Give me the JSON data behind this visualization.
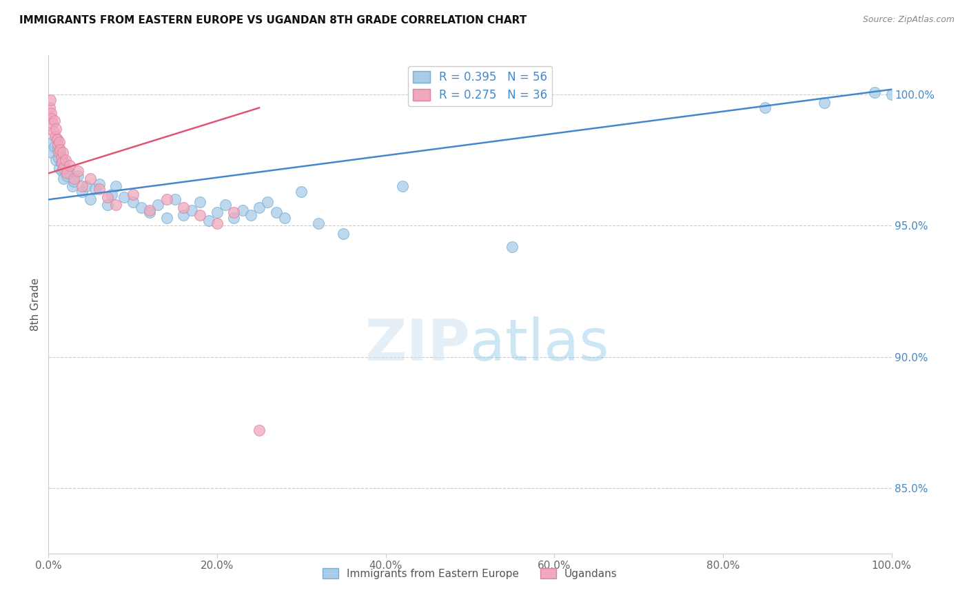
{
  "title": "IMMIGRANTS FROM EASTERN EUROPE VS UGANDAN 8TH GRADE CORRELATION CHART",
  "source": "Source: ZipAtlas.com",
  "ylabel": "8th Grade",
  "watermark_zip": "ZIP",
  "watermark_atlas": "atlas",
  "xlim": [
    0.0,
    100.0
  ],
  "ylim": [
    82.5,
    101.5
  ],
  "yticks": [
    85.0,
    90.0,
    95.0,
    100.0
  ],
  "xticks": [
    0.0,
    20.0,
    40.0,
    60.0,
    80.0,
    100.0
  ],
  "blue_R": 0.395,
  "blue_N": 56,
  "pink_R": 0.275,
  "pink_N": 36,
  "blue_color": "#a8cce8",
  "pink_color": "#f0a8bc",
  "blue_edge_color": "#7aaed0",
  "pink_edge_color": "#e080a0",
  "blue_line_color": "#4488cc",
  "pink_line_color": "#e05575",
  "legend_color": "#4488cc",
  "right_tick_color": "#4488cc",
  "grid_color": "#cccccc",
  "background_color": "#ffffff",
  "blue_x": [
    0.3,
    0.5,
    0.7,
    0.9,
    1.0,
    1.1,
    1.2,
    1.3,
    1.4,
    1.5,
    1.6,
    1.7,
    1.8,
    2.0,
    2.2,
    2.5,
    2.8,
    3.0,
    3.5,
    4.0,
    4.5,
    5.0,
    5.5,
    6.0,
    7.0,
    7.5,
    8.0,
    9.0,
    10.0,
    11.0,
    12.0,
    13.0,
    14.0,
    15.0,
    16.0,
    17.0,
    18.0,
    19.0,
    20.0,
    21.0,
    22.0,
    23.0,
    24.0,
    25.0,
    26.0,
    27.0,
    28.0,
    30.0,
    32.0,
    35.0,
    42.0,
    55.0,
    85.0,
    92.0,
    98.0,
    100.0
  ],
  "blue_y": [
    97.8,
    98.2,
    98.0,
    97.5,
    98.3,
    97.9,
    97.6,
    97.2,
    97.8,
    97.4,
    97.1,
    97.5,
    96.8,
    97.2,
    96.9,
    97.0,
    96.5,
    96.7,
    96.9,
    96.3,
    96.5,
    96.0,
    96.4,
    96.6,
    95.8,
    96.2,
    96.5,
    96.1,
    95.9,
    95.7,
    95.5,
    95.8,
    95.3,
    96.0,
    95.4,
    95.6,
    95.9,
    95.2,
    95.5,
    95.8,
    95.3,
    95.6,
    95.4,
    95.7,
    95.9,
    95.5,
    95.3,
    96.3,
    95.1,
    94.7,
    96.5,
    94.2,
    99.5,
    99.7,
    100.1,
    100.0
  ],
  "pink_x": [
    0.1,
    0.2,
    0.3,
    0.4,
    0.5,
    0.6,
    0.7,
    0.8,
    0.9,
    1.0,
    1.1,
    1.2,
    1.3,
    1.4,
    1.5,
    1.6,
    1.7,
    1.8,
    2.0,
    2.2,
    2.5,
    3.0,
    3.5,
    4.0,
    5.0,
    6.0,
    7.0,
    8.0,
    10.0,
    12.0,
    14.0,
    16.0,
    18.0,
    20.0,
    22.0,
    25.0
  ],
  "pink_y": [
    99.5,
    99.8,
    99.3,
    99.1,
    98.9,
    98.6,
    99.0,
    98.4,
    98.7,
    98.3,
    98.1,
    97.8,
    98.2,
    97.9,
    97.6,
    97.4,
    97.8,
    97.2,
    97.5,
    97.0,
    97.3,
    96.8,
    97.1,
    96.5,
    96.8,
    96.4,
    96.1,
    95.8,
    96.2,
    95.6,
    96.0,
    95.7,
    95.4,
    95.1,
    95.5,
    87.2
  ],
  "blue_trend_x": [
    0.0,
    100.0
  ],
  "blue_trend_y": [
    96.0,
    100.2
  ],
  "pink_trend_x": [
    0.0,
    25.0
  ],
  "pink_trend_y": [
    97.0,
    99.5
  ]
}
